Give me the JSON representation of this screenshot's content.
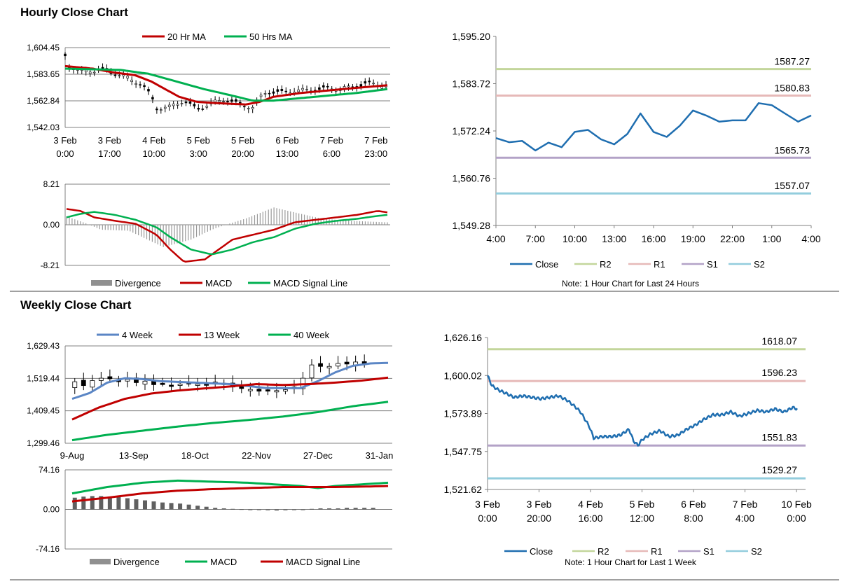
{
  "sections": {
    "hourly_title": "Hourly Close Chart",
    "weekly_title": "Weekly Close Chart"
  },
  "colors": {
    "ma_short": "#c00000",
    "ma_long": "#00b050",
    "close": "#1f6eb0",
    "r2": "#c3d69b",
    "r1": "#e6b9b8",
    "s1": "#b3a2c7",
    "s2": "#93cddd",
    "divergence": "#909090",
    "week4": "#5b86c5",
    "grid": "#808080"
  },
  "chart_data": [
    {
      "id": "hourly_price",
      "type": "candlestick",
      "legend": [
        "20 Hr MA",
        "50 Hrs MA"
      ],
      "ylim": [
        1542.03,
        1604.45
      ],
      "yticks": [
        "1,604.45",
        "1,583.65",
        "1,562.84",
        "1,542.03"
      ],
      "xticks": [
        [
          "3 Feb",
          "0:00"
        ],
        [
          "3 Feb",
          "17:00"
        ],
        [
          "4 Feb",
          "10:00"
        ],
        [
          "5 Feb",
          "3:00"
        ],
        [
          "5 Feb",
          "20:00"
        ],
        [
          "6 Feb",
          "13:00"
        ],
        [
          "7 Feb",
          "6:00"
        ],
        [
          "7 Feb",
          "23:00"
        ]
      ],
      "close_keypoints": [
        [
          0,
          1598
        ],
        [
          3,
          1590
        ],
        [
          10,
          1586
        ],
        [
          25,
          1587
        ],
        [
          40,
          1583
        ],
        [
          55,
          1576
        ],
        [
          62,
          1566
        ],
        [
          66,
          1557
        ],
        [
          75,
          1558
        ],
        [
          85,
          1563
        ],
        [
          95,
          1556
        ],
        [
          105,
          1561
        ],
        [
          115,
          1564
        ],
        [
          125,
          1560
        ],
        [
          135,
          1558
        ],
        [
          140,
          1565
        ],
        [
          145,
          1570
        ],
        [
          155,
          1569
        ],
        [
          165,
          1571
        ],
        [
          175,
          1571
        ],
        [
          185,
          1572
        ],
        [
          195,
          1573
        ],
        [
          205,
          1573
        ],
        [
          215,
          1576
        ],
        [
          225,
          1576
        ],
        [
          232,
          1575
        ]
      ],
      "series": [
        {
          "name": "20 Hr MA",
          "keypoints": [
            [
              0,
              1590
            ],
            [
              20,
              1588
            ],
            [
              35,
              1585
            ],
            [
              50,
              1583
            ],
            [
              62,
              1578
            ],
            [
              72,
              1572
            ],
            [
              82,
              1566
            ],
            [
              95,
              1562
            ],
            [
              110,
              1561
            ],
            [
              130,
              1560
            ],
            [
              140,
              1562
            ],
            [
              150,
              1566
            ],
            [
              170,
              1569
            ],
            [
              190,
              1571
            ],
            [
              210,
              1573
            ],
            [
              232,
              1575
            ]
          ]
        },
        {
          "name": "50 Hrs MA",
          "keypoints": [
            [
              0,
              1588
            ],
            [
              40,
              1587
            ],
            [
              60,
              1584
            ],
            [
              80,
              1578
            ],
            [
              100,
              1572
            ],
            [
              120,
              1567
            ],
            [
              135,
              1563
            ],
            [
              150,
              1563
            ],
            [
              170,
              1565
            ],
            [
              190,
              1567
            ],
            [
              210,
              1569
            ],
            [
              232,
              1572
            ]
          ]
        }
      ]
    },
    {
      "id": "hourly_macd",
      "type": "line",
      "ylim": [
        -8.21,
        8.21
      ],
      "yticks": [
        "8.21",
        "0.00",
        "-8.21"
      ],
      "legend": [
        "Divergence",
        "MACD",
        "MACD Signal Line"
      ],
      "series": [
        {
          "name": "MACD",
          "keypoints": [
            [
              0,
              3.2
            ],
            [
              10,
              2.8
            ],
            [
              20,
              1.5
            ],
            [
              35,
              0.8
            ],
            [
              50,
              0.2
            ],
            [
              65,
              -2
            ],
            [
              75,
              -5
            ],
            [
              85,
              -7.5
            ],
            [
              100,
              -7
            ],
            [
              110,
              -5
            ],
            [
              120,
              -3
            ],
            [
              135,
              -2
            ],
            [
              150,
              -1
            ],
            [
              165,
              0.5
            ],
            [
              180,
              1
            ],
            [
              195,
              1.5
            ],
            [
              210,
              2
            ],
            [
              225,
              2.8
            ],
            [
              232,
              2.5
            ]
          ]
        },
        {
          "name": "MACD Signal Line",
          "keypoints": [
            [
              0,
              1.5
            ],
            [
              10,
              2.2
            ],
            [
              20,
              2.6
            ],
            [
              35,
              2
            ],
            [
              50,
              1
            ],
            [
              65,
              -0.5
            ],
            [
              75,
              -2.5
            ],
            [
              90,
              -5
            ],
            [
              105,
              -6
            ],
            [
              120,
              -5
            ],
            [
              135,
              -3.5
            ],
            [
              150,
              -2.5
            ],
            [
              165,
              -0.8
            ],
            [
              180,
              0.2
            ],
            [
              195,
              0.8
            ],
            [
              210,
              1.2
            ],
            [
              225,
              1.8
            ],
            [
              232,
              2
            ]
          ]
        }
      ],
      "divergence_keypoints": [
        [
          0,
          1.7
        ],
        [
          15,
          0.2
        ],
        [
          25,
          -1
        ],
        [
          45,
          -1.2
        ],
        [
          70,
          -4.5
        ],
        [
          90,
          -3
        ],
        [
          105,
          -1
        ],
        [
          115,
          0
        ],
        [
          130,
          1.3
        ],
        [
          150,
          3.5
        ],
        [
          165,
          2.5
        ],
        [
          185,
          1.2
        ],
        [
          205,
          0.8
        ],
        [
          232,
          0.5
        ]
      ]
    },
    {
      "id": "hourly_close_24h",
      "type": "line",
      "ylim": [
        1549.28,
        1595.2
      ],
      "yticks": [
        "1,595.20",
        "1,583.72",
        "1,572.24",
        "1,560.76",
        "1,549.28"
      ],
      "xticks": [
        "4:00",
        "7:00",
        "10:00",
        "13:00",
        "16:00",
        "19:00",
        "22:00",
        "1:00",
        "4:00"
      ],
      "x": [
        0,
        1,
        2,
        3,
        4,
        5,
        6,
        7,
        8,
        9,
        10,
        11,
        12,
        13,
        14,
        15,
        16,
        17,
        18,
        19,
        20,
        21,
        22,
        23,
        24
      ],
      "close": [
        1570.5,
        1569.5,
        1569.8,
        1567.5,
        1569.4,
        1568.3,
        1572.0,
        1572.5,
        1570.2,
        1569.0,
        1571.5,
        1576.5,
        1572.0,
        1570.8,
        1573.5,
        1577.2,
        1576.0,
        1574.5,
        1574.8,
        1574.8,
        1579.0,
        1578.5,
        1576.5,
        1574.5,
        1576.0
      ],
      "levels": [
        {
          "name": "R2",
          "value": 1587.27,
          "label": "1587.27"
        },
        {
          "name": "R1",
          "value": 1580.83,
          "label": "1580.83"
        },
        {
          "name": "S1",
          "value": 1565.73,
          "label": "1565.73"
        },
        {
          "name": "S2",
          "value": 1557.07,
          "label": "1557.07"
        }
      ],
      "legend": [
        "Close",
        "R2",
        "R1",
        "S1",
        "S2"
      ],
      "note": "Note: 1 Hour Chart for Last 24 Hours"
    },
    {
      "id": "weekly_price",
      "type": "candlestick",
      "legend": [
        "4 Week",
        "13 Week",
        "40 Week"
      ],
      "ylim": [
        1299.46,
        1629.43
      ],
      "yticks": [
        "1,629.43",
        "1,519.44",
        "1,409.45",
        "1,299.46"
      ],
      "xticks": [
        "9-Aug",
        "13-Sep",
        "18-Oct",
        "22-Nov",
        "27-Dec",
        "31-Jan"
      ],
      "close": [
        1508,
        1495,
        1512,
        1520,
        1518,
        1510,
        1516,
        1505,
        1510,
        1498,
        1502,
        1495,
        1500,
        1503,
        1500,
        1498,
        1507,
        1503,
        1490,
        1485,
        1482,
        1476,
        1480,
        1478,
        1481,
        1490,
        1520,
        1565,
        1560,
        1560,
        1570,
        1568,
        1575,
        1568
      ],
      "series": [
        {
          "name": "4 Week",
          "keypoints": [
            [
              0,
              1450
            ],
            [
              2,
              1470
            ],
            [
              4,
              1505
            ],
            [
              6,
              1520
            ],
            [
              8,
              1517
            ],
            [
              10,
              1510
            ],
            [
              14,
              1505
            ],
            [
              18,
              1500
            ],
            [
              22,
              1487
            ],
            [
              26,
              1486
            ],
            [
              28,
              1510
            ],
            [
              30,
              1540
            ],
            [
              32,
              1562
            ],
            [
              34,
              1570
            ],
            [
              36,
              1572
            ]
          ]
        },
        {
          "name": "13 Week",
          "keypoints": [
            [
              0,
              1380
            ],
            [
              3,
              1420
            ],
            [
              6,
              1450
            ],
            [
              9,
              1468
            ],
            [
              12,
              1478
            ],
            [
              15,
              1485
            ],
            [
              18,
              1492
            ],
            [
              21,
              1500
            ],
            [
              24,
              1497
            ],
            [
              27,
              1500
            ],
            [
              30,
              1505
            ],
            [
              33,
              1512
            ],
            [
              36,
              1522
            ]
          ]
        },
        {
          "name": "40 Week",
          "keypoints": [
            [
              0,
              1310
            ],
            [
              4,
              1328
            ],
            [
              8,
              1342
            ],
            [
              12,
              1356
            ],
            [
              16,
              1368
            ],
            [
              20,
              1378
            ],
            [
              24,
              1390
            ],
            [
              28,
              1405
            ],
            [
              32,
              1425
            ],
            [
              36,
              1440
            ]
          ]
        }
      ]
    },
    {
      "id": "weekly_macd",
      "type": "line",
      "ylim": [
        -74.16,
        74.16
      ],
      "yticks": [
        "74.16",
        "0.00",
        "-74.16"
      ],
      "legend": [
        "Divergence",
        "MACD",
        "MACD Signal Line"
      ],
      "series": [
        {
          "name": "MACD",
          "keypoints": [
            [
              0,
              30
            ],
            [
              4,
              42
            ],
            [
              8,
              50
            ],
            [
              12,
              54
            ],
            [
              16,
              52
            ],
            [
              20,
              50
            ],
            [
              24,
              46
            ],
            [
              26,
              44
            ],
            [
              28,
              40
            ],
            [
              30,
              44
            ],
            [
              34,
              48
            ],
            [
              36,
              50
            ]
          ]
        },
        {
          "name": "MACD Signal Line",
          "keypoints": [
            [
              0,
              15
            ],
            [
              4,
              22
            ],
            [
              8,
              30
            ],
            [
              12,
              35
            ],
            [
              16,
              38
            ],
            [
              20,
              40
            ],
            [
              24,
              42
            ],
            [
              28,
              42
            ],
            [
              30,
              42
            ],
            [
              34,
              43
            ],
            [
              36,
              44
            ]
          ]
        }
      ],
      "divergence": [
        22,
        24,
        25,
        25,
        24,
        23,
        21,
        19,
        17,
        15,
        13,
        12,
        11,
        9,
        7,
        5,
        3,
        2,
        1,
        0.5,
        -0.5,
        -1,
        -1.5,
        -2,
        -1.5,
        -1,
        0,
        1,
        2,
        2,
        2,
        3,
        3,
        3,
        3
      ]
    },
    {
      "id": "weekly_close_1w",
      "type": "line",
      "ylim": [
        1521.62,
        1626.16
      ],
      "yticks": [
        "1,626.16",
        "1,600.02",
        "1,573.89",
        "1,547.75",
        "1,521.62"
      ],
      "xticks": [
        [
          "3 Feb",
          "0:00"
        ],
        [
          "3 Feb",
          "20:00"
        ],
        [
          "4 Feb",
          "16:00"
        ],
        [
          "5 Feb",
          "12:00"
        ],
        [
          "6 Feb",
          "8:00"
        ],
        [
          "7 Feb",
          "4:00"
        ],
        [
          "10 Feb",
          "0:00"
        ]
      ],
      "close_keypoints": [
        [
          0,
          1600
        ],
        [
          2,
          1593
        ],
        [
          5,
          1590
        ],
        [
          8,
          1588
        ],
        [
          12,
          1585
        ],
        [
          16,
          1586
        ],
        [
          20,
          1585
        ],
        [
          24,
          1584
        ],
        [
          28,
          1585
        ],
        [
          32,
          1586
        ],
        [
          36,
          1583
        ],
        [
          40,
          1578
        ],
        [
          42,
          1575
        ],
        [
          44,
          1570
        ],
        [
          46,
          1565
        ],
        [
          48,
          1557
        ],
        [
          52,
          1558
        ],
        [
          56,
          1558
        ],
        [
          60,
          1559
        ],
        [
          64,
          1563
        ],
        [
          66,
          1555
        ],
        [
          68,
          1552
        ],
        [
          70,
          1556
        ],
        [
          74,
          1560
        ],
        [
          78,
          1562
        ],
        [
          82,
          1558
        ],
        [
          86,
          1559
        ],
        [
          90,
          1563
        ],
        [
          94,
          1566
        ],
        [
          98,
          1570
        ],
        [
          102,
          1573
        ],
        [
          106,
          1573
        ],
        [
          110,
          1575
        ],
        [
          114,
          1572
        ],
        [
          118,
          1574
        ],
        [
          122,
          1576
        ],
        [
          126,
          1575
        ],
        [
          130,
          1577
        ],
        [
          134,
          1575
        ],
        [
          138,
          1578
        ],
        [
          140,
          1577
        ]
      ],
      "levels": [
        {
          "name": "R2",
          "value": 1618.07,
          "label": "1618.07"
        },
        {
          "name": "R1",
          "value": 1596.23,
          "label": "1596.23"
        },
        {
          "name": "S1",
          "value": 1551.83,
          "label": "1551.83"
        },
        {
          "name": "S2",
          "value": 1529.27,
          "label": "1529.27"
        }
      ],
      "legend": [
        "Close",
        "R2",
        "R1",
        "S1",
        "S2"
      ],
      "note": "Note: 1 Hour Chart for Last 1 Week"
    }
  ]
}
